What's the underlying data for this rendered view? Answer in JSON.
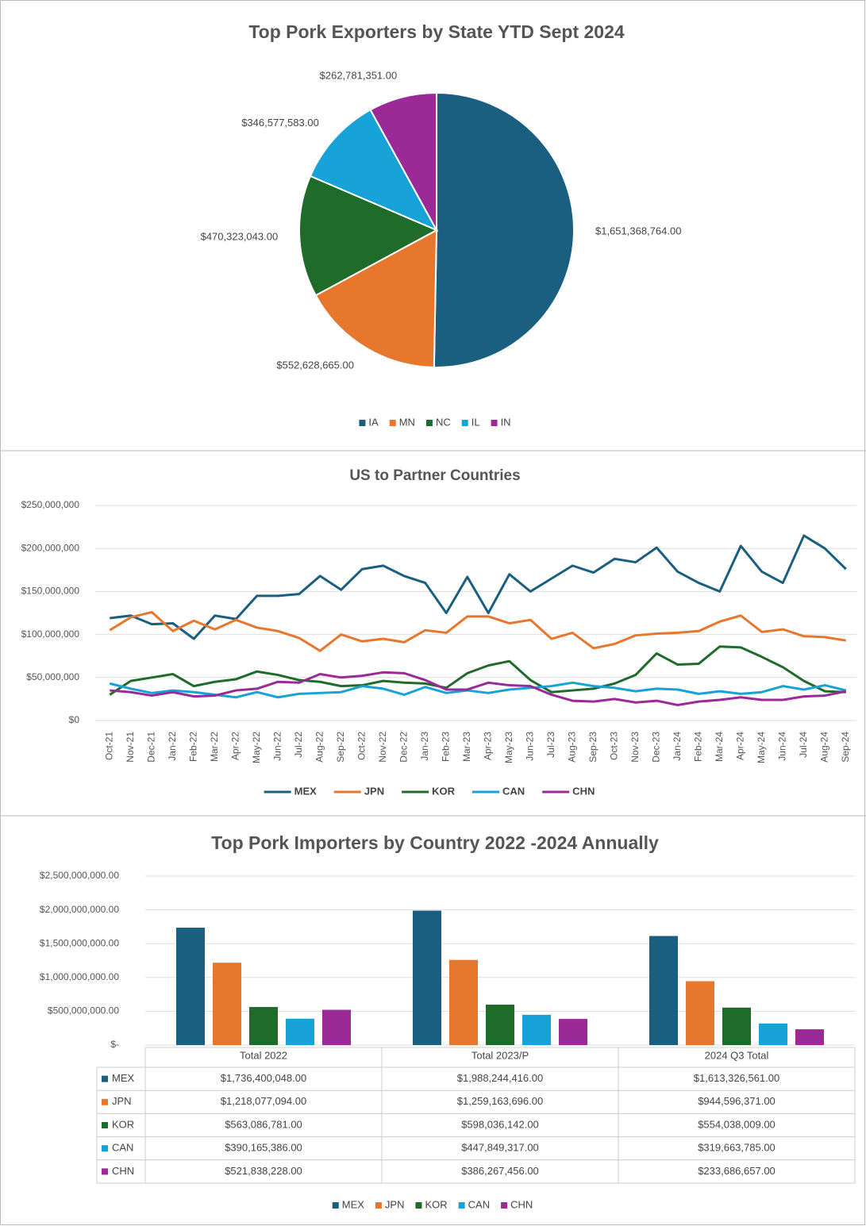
{
  "chart_data": [
    {
      "type": "pie",
      "title": "Top Pork Exporters by State YTD Sept 2024",
      "categories": [
        "IA",
        "MN",
        "NC",
        "IL",
        "IN"
      ],
      "values": [
        1651368764,
        552628665,
        470323043,
        346577583,
        262781351
      ],
      "value_labels": [
        "$1,651,368,764.00",
        "$552,628,665.00",
        "$470,323,043.00",
        "$346,577,583.00",
        "$262,781,351.00"
      ],
      "colors": [
        "#1a5e80",
        "#e8772e",
        "#1e6b2a",
        "#17a2d8",
        "#9b2a96"
      ],
      "legend": "bottom"
    },
    {
      "type": "line",
      "title": "US to Partner Countries",
      "categories": [
        "Oct-21",
        "Nov-21",
        "Dec-21",
        "Jan-22",
        "Feb-22",
        "Mar-22",
        "Apr-22",
        "May-22",
        "Jun-22",
        "Jul-22",
        "Aug-22",
        "Sep-22",
        "Oct-22",
        "Nov-22",
        "Dec-22",
        "Jan-23",
        "Feb-23",
        "Mar-23",
        "Apr-23",
        "May-23",
        "Jun-23",
        "Jul-23",
        "Aug-23",
        "Sep-23",
        "Oct-23",
        "Nov-23",
        "Dec-23",
        "Jan-24",
        "Feb-24",
        "Mar-24",
        "Apr-24",
        "May-24",
        "Jun-24",
        "Jul-24",
        "Aug-24",
        "Sep-24"
      ],
      "series": [
        {
          "name": "MEX",
          "color": "#1a5e80",
          "values": [
            119000000,
            122000000,
            112000000,
            113000000,
            95000000,
            122000000,
            118000000,
            145000000,
            145000000,
            147000000,
            168000000,
            152000000,
            176000000,
            180000000,
            168000000,
            160000000,
            125000000,
            167000000,
            125000000,
            170000000,
            150000000,
            165000000,
            180000000,
            172000000,
            188000000,
            184000000,
            201000000,
            173000000,
            160000000,
            150000000,
            203000000,
            173000000,
            160000000,
            215000000,
            200000000,
            176000000
          ]
        },
        {
          "name": "JPN",
          "color": "#e8772e",
          "values": [
            105000000,
            120000000,
            126000000,
            104000000,
            116000000,
            106000000,
            117000000,
            108000000,
            104000000,
            96000000,
            81000000,
            100000000,
            92000000,
            95000000,
            91000000,
            105000000,
            102000000,
            121000000,
            121000000,
            113000000,
            117000000,
            95000000,
            102000000,
            84000000,
            89000000,
            99000000,
            101000000,
            102000000,
            104000000,
            115000000,
            122000000,
            103000000,
            106000000,
            98000000,
            97000000,
            93000000
          ]
        },
        {
          "name": "KOR",
          "color": "#1e6b2a",
          "values": [
            30000000,
            46000000,
            50000000,
            54000000,
            40000000,
            45000000,
            48000000,
            57000000,
            53000000,
            47000000,
            45000000,
            40000000,
            41000000,
            46000000,
            44000000,
            43000000,
            38000000,
            55000000,
            64000000,
            69000000,
            47000000,
            33000000,
            35000000,
            37000000,
            43000000,
            53000000,
            78000000,
            65000000,
            66000000,
            86000000,
            85000000,
            74000000,
            62000000,
            46000000,
            34000000,
            33000000
          ]
        },
        {
          "name": "CAN",
          "color": "#17a2d8",
          "values": [
            43000000,
            37000000,
            32000000,
            35000000,
            33000000,
            30000000,
            27000000,
            33000000,
            27000000,
            31000000,
            32000000,
            33000000,
            40000000,
            37000000,
            30000000,
            39000000,
            32000000,
            35000000,
            32000000,
            36000000,
            38000000,
            40000000,
            44000000,
            40000000,
            38000000,
            34000000,
            37000000,
            36000000,
            31000000,
            34000000,
            31000000,
            33000000,
            40000000,
            36000000,
            41000000,
            35000000
          ]
        },
        {
          "name": "CHN",
          "color": "#9b2a96",
          "values": [
            35000000,
            33000000,
            29000000,
            33000000,
            28000000,
            29000000,
            35000000,
            37000000,
            45000000,
            44000000,
            54000000,
            50000000,
            52000000,
            56000000,
            55000000,
            47000000,
            36000000,
            36000000,
            44000000,
            41000000,
            40000000,
            30000000,
            23000000,
            22000000,
            25000000,
            21000000,
            23000000,
            18000000,
            22000000,
            24000000,
            27000000,
            24000000,
            24000000,
            28000000,
            29000000,
            34000000
          ]
        }
      ],
      "ylim": [
        0,
        250000000
      ],
      "yticks": [
        {
          "value": 0,
          "label": "$0"
        },
        {
          "value": 50000000,
          "label": "$50,000,000"
        },
        {
          "value": 100000000,
          "label": "$100,000,000"
        },
        {
          "value": 150000000,
          "label": "$150,000,000"
        },
        {
          "value": 200000000,
          "label": "$200,000,000"
        },
        {
          "value": 250000000,
          "label": "$250,000,000"
        }
      ],
      "grid": true,
      "legend": "bottom"
    },
    {
      "type": "bar",
      "title": "Top Pork Importers by Country 2022 -2024 Annually",
      "categories": [
        "Total 2022",
        "Total 2023/P",
        "2024 Q3 Total"
      ],
      "series": [
        {
          "name": "MEX",
          "color": "#1a5e80",
          "values": [
            1736400048,
            1988244416,
            1613326561
          ],
          "value_labels": [
            "$1,736,400,048.00",
            "$1,988,244,416.00",
            "$1,613,326,561.00"
          ]
        },
        {
          "name": "JPN",
          "color": "#e8772e",
          "values": [
            1218077094,
            1259163696,
            944596371
          ],
          "value_labels": [
            "$1,218,077,094.00",
            "$1,259,163,696.00",
            "$944,596,371.00"
          ]
        },
        {
          "name": "KOR",
          "color": "#1e6b2a",
          "values": [
            563086781,
            598036142,
            554038009
          ],
          "value_labels": [
            "$563,086,781.00",
            "$598,036,142.00",
            "$554,038,009.00"
          ]
        },
        {
          "name": "CAN",
          "color": "#17a2d8",
          "values": [
            390165386,
            447849317,
            319663785
          ],
          "value_labels": [
            "$390,165,386.00",
            "$447,849,317.00",
            "$319,663,785.00"
          ]
        },
        {
          "name": "CHN",
          "color": "#9b2a96",
          "values": [
            521838228,
            386267456,
            233686657
          ],
          "value_labels": [
            "$521,838,228.00",
            "$386,267,456.00",
            "$233,686,657.00"
          ]
        }
      ],
      "ylim": [
        0,
        2500000000
      ],
      "yticks": [
        {
          "value": 0,
          "label": "$-"
        },
        {
          "value": 500000000,
          "label": "$500,000,000.00"
        },
        {
          "value": 1000000000,
          "label": "$1,000,000,000.00"
        },
        {
          "value": 1500000000,
          "label": "$1,500,000,000.00"
        },
        {
          "value": 2000000000,
          "label": "$2,000,000,000.00"
        },
        {
          "value": 2500000000,
          "label": "$2,500,000,000.00"
        }
      ],
      "grid": true,
      "legend": "bottom"
    }
  ]
}
